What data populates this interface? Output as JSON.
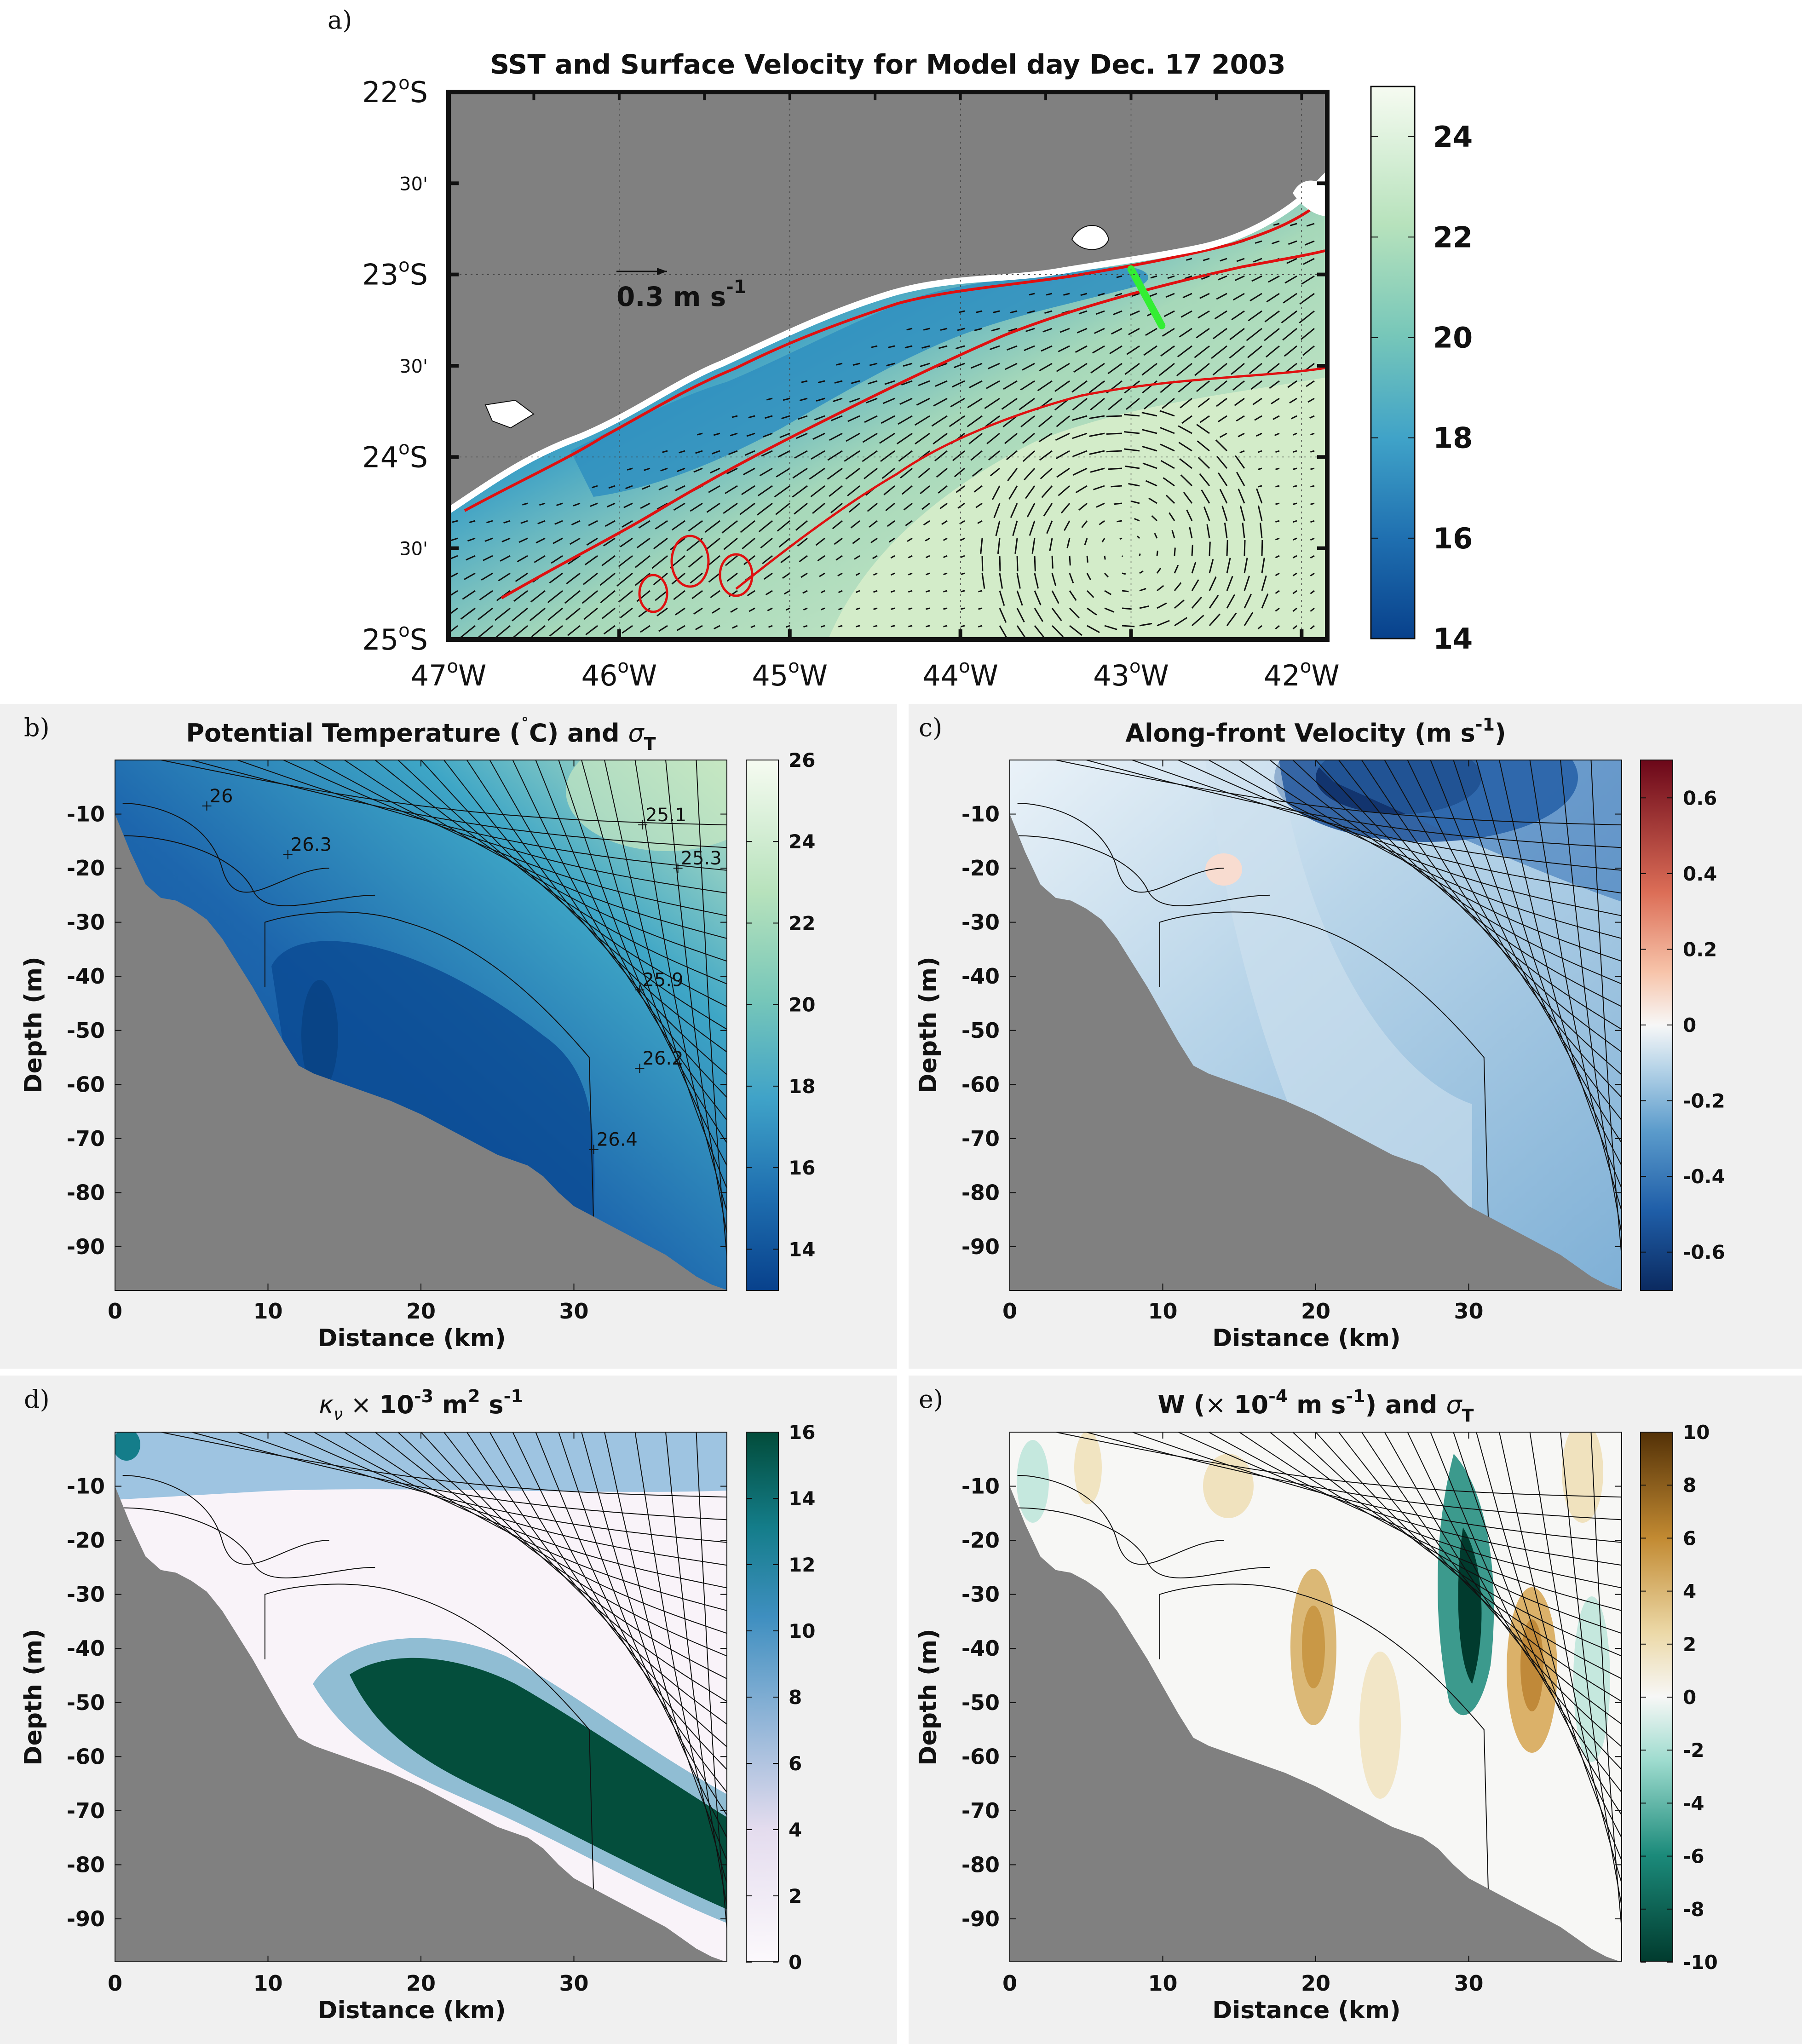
{
  "panel_labels": {
    "a": "a)",
    "b": "b)",
    "c": "c)",
    "d": "d)",
    "e": "e)"
  },
  "chart_data": [
    {
      "type": "heatmap",
      "panel": "a",
      "title": "SST and Surface Velocity for Model day Dec. 17 2003",
      "lon_ticks": [
        "47°W",
        "46°W",
        "45°W",
        "44°W",
        "43°W",
        "42°W"
      ],
      "lat_ticks": [
        "22°S",
        "23°S",
        "24°S",
        "25°S"
      ],
      "lat_minor_label": "30'",
      "xlim": [
        -47,
        -41.85
      ],
      "ylim": [
        -25,
        -22
      ],
      "scale_arrow_label": "0.3 m s",
      "scale_arrow_exponent": "-1",
      "colorbar": {
        "min": 14,
        "max": 25,
        "ticks": [
          14,
          16,
          18,
          20,
          22,
          24
        ],
        "colormap": "GnBu_r"
      },
      "section_line": {
        "from": [
          -43.0,
          -22.97
        ],
        "to": [
          -42.82,
          -23.28
        ],
        "color": "#33ee33"
      },
      "land_color": "#808080",
      "sst_front_color": "#e01010"
    },
    {
      "type": "heatmap",
      "panel": "b",
      "title": "Potential Temperature (",
      "title_deg": "˚",
      "title_rest": "C) and ",
      "title_sigma": "σ",
      "title_sub": "T",
      "xlabel": "Distance (km)",
      "ylabel": "Depth (m)",
      "xlim": [
        0,
        40
      ],
      "ylim": [
        -98,
        0
      ],
      "xticks": [
        0,
        10,
        20,
        30
      ],
      "yticks": [
        -10,
        -20,
        -30,
        -40,
        -50,
        -60,
        -70,
        -80,
        -90
      ],
      "colorbar": {
        "min": 13,
        "max": 26,
        "ticks": [
          14,
          16,
          18,
          20,
          22,
          24,
          26
        ]
      },
      "contour_labels": [
        {
          "text": "26",
          "x": 6.0,
          "y": -8.5
        },
        {
          "text": "26.3",
          "x": 11.3,
          "y": -17.5
        },
        {
          "text": "25.1",
          "x": 34.5,
          "y": -12.0
        },
        {
          "text": "25.3",
          "x": 36.8,
          "y": -20.0
        },
        {
          "text": "25.9",
          "x": 34.3,
          "y": -42.5
        },
        {
          "text": "26.2",
          "x": 34.3,
          "y": -57.0
        },
        {
          "text": "26.4",
          "x": 31.3,
          "y": -72.0
        }
      ]
    },
    {
      "type": "heatmap",
      "panel": "c",
      "title": "Along-front Velocity (m s",
      "title_exp": "-1",
      "title_end": ")",
      "xlabel": "Distance (km)",
      "ylabel": "Depth (m)",
      "xlim": [
        0,
        40
      ],
      "ylim": [
        -98,
        0
      ],
      "xticks": [
        0,
        10,
        20,
        30
      ],
      "yticks": [
        -10,
        -20,
        -30,
        -40,
        -50,
        -60,
        -70,
        -80,
        -90
      ],
      "colorbar": {
        "min": -0.7,
        "max": 0.7,
        "ticks": [
          -0.6,
          -0.4,
          -0.2,
          0,
          0.2,
          0.4,
          0.6
        ],
        "tick_labels": [
          "-0.6",
          "-0.4",
          "-0.2",
          "0",
          "0.2",
          "0.4",
          "0.6"
        ]
      }
    },
    {
      "type": "heatmap",
      "panel": "d",
      "title_kappa": "κ",
      "title_nu": "ν",
      "title_times": " × ",
      "title_main": "10",
      "title_exp1": "-3",
      "title_mid": " m",
      "title_exp2": "2",
      "title_s": " s",
      "title_exp3": "-1",
      "xlabel": "Distance (km)",
      "ylabel": "Depth (m)",
      "xlim": [
        0,
        40
      ],
      "ylim": [
        -98,
        0
      ],
      "xticks": [
        0,
        10,
        20,
        30
      ],
      "yticks": [
        -10,
        -20,
        -30,
        -40,
        -50,
        -60,
        -70,
        -80,
        -90
      ],
      "colorbar": {
        "min": 0,
        "max": 16,
        "ticks": [
          0,
          2,
          4,
          6,
          8,
          10,
          12,
          14,
          16
        ]
      }
    },
    {
      "type": "heatmap",
      "panel": "e",
      "title": "W (",
      "title_times": "× ",
      "title_main": "10",
      "title_exp": "-4",
      "title_unit": " m s",
      "title_exp2": "-1",
      "title_rest": ") and ",
      "title_sigma": "σ",
      "title_sub": "T",
      "xlabel": "Distance (km)",
      "ylabel": "Depth (m)",
      "xlim": [
        0,
        40
      ],
      "ylim": [
        -98,
        0
      ],
      "xticks": [
        0,
        10,
        20,
        30
      ],
      "yticks": [
        -10,
        -20,
        -30,
        -40,
        -50,
        -60,
        -70,
        -80,
        -90
      ],
      "colorbar": {
        "min": -10,
        "max": 10,
        "ticks": [
          -10,
          -8,
          -6,
          -4,
          -2,
          0,
          2,
          4,
          6,
          8,
          10
        ]
      }
    }
  ]
}
